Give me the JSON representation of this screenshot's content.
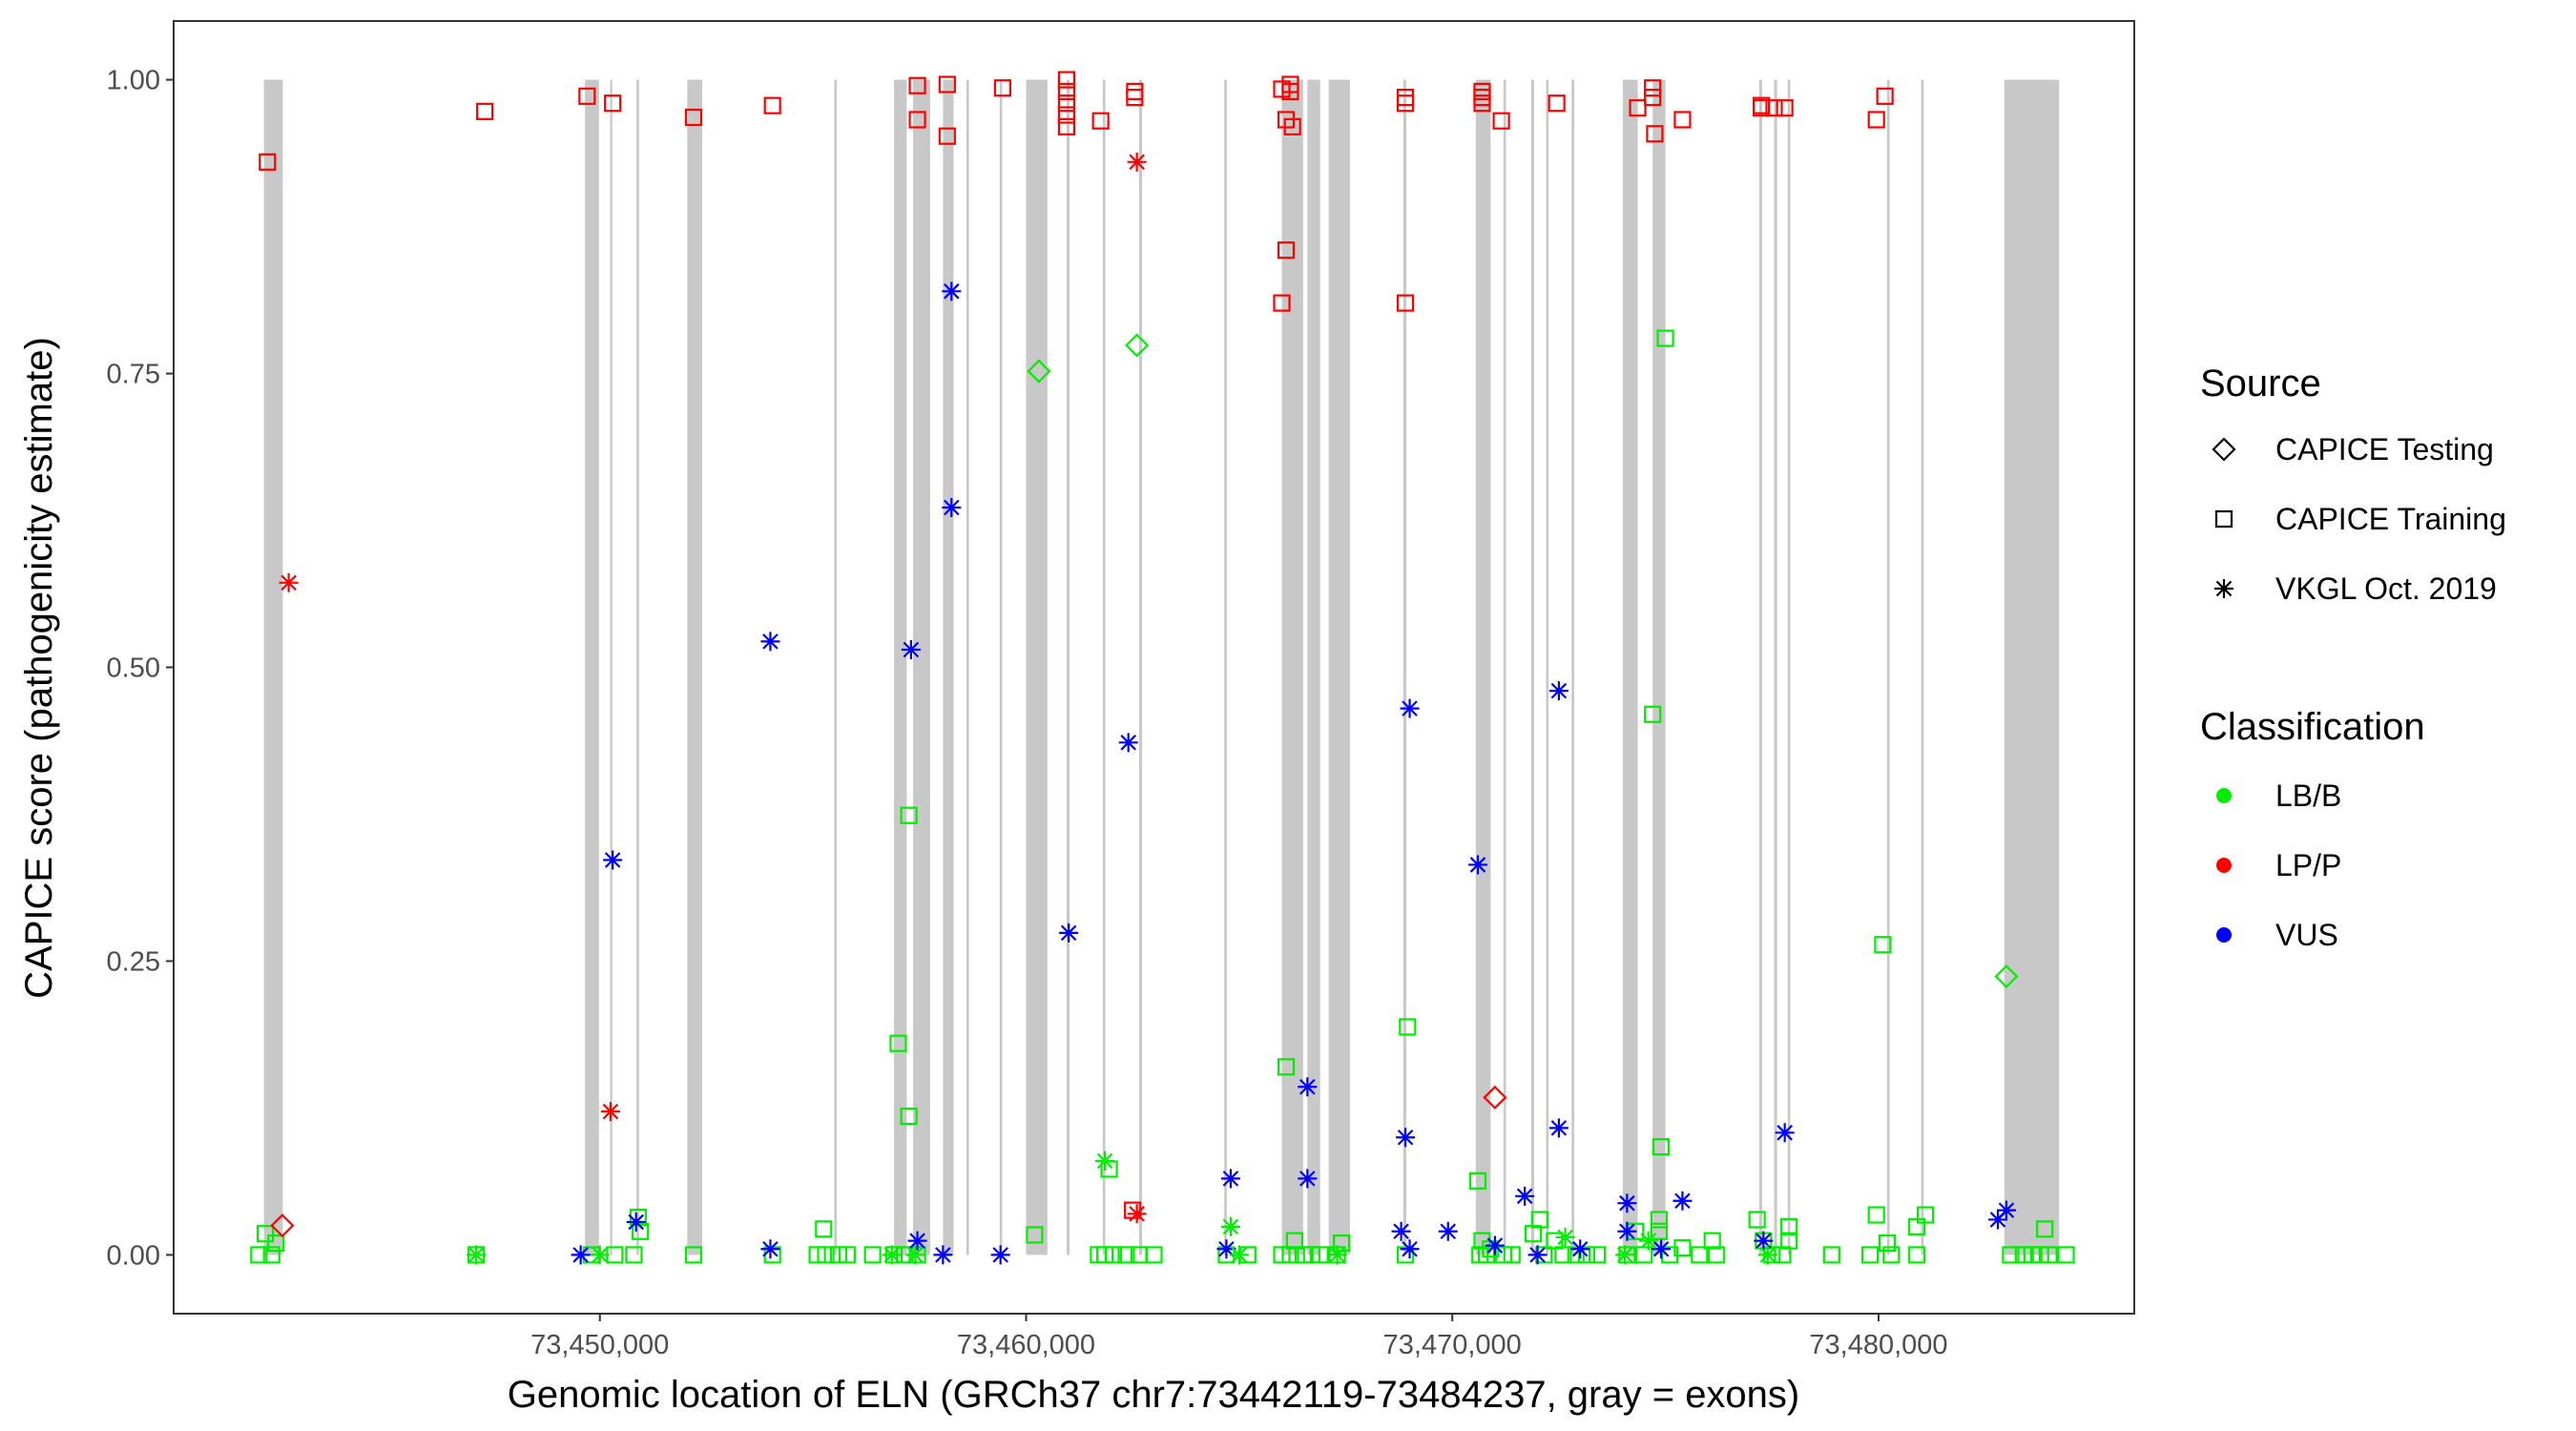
{
  "chart_data": {
    "type": "scatter",
    "xlabel": "Genomic location of ELN (GRCh37 chr7:73442119-73484237, gray = exons)",
    "ylabel": "CAPICE score (pathogenicity estimate)",
    "xlim": [
      73440000,
      73486000
    ],
    "ylim": [
      -0.05,
      1.05
    ],
    "xticks": [
      73450000,
      73460000,
      73470000,
      73480000
    ],
    "xtick_labels": [
      "73,450,000",
      "73,460,000",
      "73,470,000",
      "73,480,000"
    ],
    "yticks": [
      0,
      0.25,
      0.5,
      0.75,
      1.0
    ],
    "ytick_labels": [
      "0.00",
      "0.25",
      "0.50",
      "0.75",
      "1.00"
    ],
    "grid": false,
    "exons": [
      [
        73442119,
        73442560
      ],
      [
        73449650,
        73449980
      ],
      [
        73450240,
        73450290
      ],
      [
        73450860,
        73450920
      ],
      [
        73452050,
        73452400
      ],
      [
        73455500,
        73455560
      ],
      [
        73456900,
        73457200
      ],
      [
        73457350,
        73457750
      ],
      [
        73458050,
        73458300
      ],
      [
        73458600,
        73458660
      ],
      [
        73459380,
        73459440
      ],
      [
        73460000,
        73460500
      ],
      [
        73460950,
        73461020
      ],
      [
        73461800,
        73461860
      ],
      [
        73462650,
        73462720
      ],
      [
        73464650,
        73464710
      ],
      [
        73466000,
        73466500
      ],
      [
        73466600,
        73466900
      ],
      [
        73467100,
        73467600
      ],
      [
        73468850,
        73468920
      ],
      [
        73470550,
        73470900
      ],
      [
        73471200,
        73471260
      ],
      [
        73471850,
        73471920
      ],
      [
        73472200,
        73472260
      ],
      [
        73472800,
        73472860
      ],
      [
        73474000,
        73474350
      ],
      [
        73474700,
        73475000
      ],
      [
        73477200,
        73477270
      ],
      [
        73477550,
        73477620
      ],
      [
        73477870,
        73477930
      ],
      [
        73480200,
        73480260
      ],
      [
        73481000,
        73481060
      ],
      [
        73482950,
        73484237
      ]
    ],
    "series": [
      {
        "source": "CAPICE Training",
        "classification": "LP/P",
        "points": [
          [
            73442200,
            0.93
          ],
          [
            73447300,
            0.973
          ],
          [
            73449700,
            0.986
          ],
          [
            73450300,
            0.98
          ],
          [
            73452200,
            0.968
          ],
          [
            73454050,
            0.978
          ],
          [
            73457450,
            0.995
          ],
          [
            73457450,
            0.966
          ],
          [
            73458150,
            0.996
          ],
          [
            73458150,
            0.952
          ],
          [
            73459450,
            0.993
          ],
          [
            73460950,
            1.0
          ],
          [
            73460950,
            0.99
          ],
          [
            73460950,
            0.98
          ],
          [
            73460950,
            0.97
          ],
          [
            73460950,
            0.96
          ],
          [
            73461750,
            0.965
          ],
          [
            73462550,
            0.99
          ],
          [
            73462550,
            0.985
          ],
          [
            73466000,
            0.992
          ],
          [
            73466200,
            0.996
          ],
          [
            73466200,
            0.99
          ],
          [
            73466100,
            0.966
          ],
          [
            73466250,
            0.96
          ],
          [
            73466100,
            0.855
          ],
          [
            73466000,
            0.81
          ],
          [
            73468900,
            0.985
          ],
          [
            73468900,
            0.98
          ],
          [
            73468900,
            0.81
          ],
          [
            73470700,
            0.99
          ],
          [
            73470700,
            0.98
          ],
          [
            73470700,
            0.985
          ],
          [
            73471150,
            0.965
          ],
          [
            73472450,
            0.98
          ],
          [
            73474350,
            0.976
          ],
          [
            73474700,
            0.993
          ],
          [
            73474700,
            0.985
          ],
          [
            73474750,
            0.954
          ],
          [
            73475400,
            0.966
          ],
          [
            73477250,
            0.976
          ],
          [
            73477250,
            0.978
          ],
          [
            73477550,
            0.976
          ],
          [
            73477800,
            0.976
          ],
          [
            73479950,
            0.966
          ],
          [
            73480150,
            0.986
          ],
          [
            73462500,
            0.038
          ]
        ]
      },
      {
        "source": "CAPICE Training",
        "classification": "LB/B",
        "points": [
          [
            73442000,
            0.0
          ],
          [
            73442300,
            0.0
          ],
          [
            73442400,
            0.01
          ],
          [
            73442150,
            0.018
          ],
          [
            73447100,
            0.0
          ],
          [
            73449800,
            0.0
          ],
          [
            73450350,
            0.0
          ],
          [
            73450800,
            0.0
          ],
          [
            73450900,
            0.032
          ],
          [
            73450950,
            0.02
          ],
          [
            73452200,
            0.0
          ],
          [
            73454050,
            0.0
          ],
          [
            73455100,
            0.0
          ],
          [
            73455300,
            0.0
          ],
          [
            73455250,
            0.022
          ],
          [
            73455600,
            0.0
          ],
          [
            73455800,
            0.0
          ],
          [
            73456400,
            0.0
          ],
          [
            73456900,
            0.0
          ],
          [
            73457150,
            0.0
          ],
          [
            73457450,
            0.0
          ],
          [
            73457000,
            0.18
          ],
          [
            73457250,
            0.118
          ],
          [
            73457250,
            0.374
          ],
          [
            73460200,
            0.017
          ],
          [
            73461700,
            0.0
          ],
          [
            73461850,
            0.0
          ],
          [
            73462050,
            0.0
          ],
          [
            73461950,
            0.073
          ],
          [
            73462350,
            0.0
          ],
          [
            73462650,
            0.0
          ],
          [
            73463000,
            0.0
          ],
          [
            73464700,
            0.0
          ],
          [
            73465200,
            0.0
          ],
          [
            73466000,
            0.0
          ],
          [
            73466100,
            0.16
          ],
          [
            73466200,
            0.0
          ],
          [
            73466300,
            0.012
          ],
          [
            73466500,
            0.0
          ],
          [
            73466700,
            0.0
          ],
          [
            73466900,
            0.0
          ],
          [
            73467300,
            0.0
          ],
          [
            73467400,
            0.01
          ],
          [
            73468900,
            0.0
          ],
          [
            73468950,
            0.194
          ],
          [
            73470600,
            0.063
          ],
          [
            73470650,
            0.0
          ],
          [
            73470700,
            0.012
          ],
          [
            73470800,
            0.0
          ],
          [
            73470900,
            0.005
          ],
          [
            73471200,
            0.0
          ],
          [
            73471400,
            0.0
          ],
          [
            73471900,
            0.018
          ],
          [
            73472050,
            0.03
          ],
          [
            73472150,
            0.0
          ],
          [
            73472400,
            0.012
          ],
          [
            73472600,
            0.0
          ],
          [
            73472900,
            0.0
          ],
          [
            73473150,
            0.0
          ],
          [
            73473400,
            0.0
          ],
          [
            73474100,
            0.0
          ],
          [
            73474300,
            0.02
          ],
          [
            73474500,
            0.0
          ],
          [
            73474700,
            0.46
          ],
          [
            73474850,
            0.03
          ],
          [
            73474850,
            0.02
          ],
          [
            73474900,
            0.092
          ],
          [
            73475000,
            0.78
          ],
          [
            73475100,
            0.0
          ],
          [
            73475400,
            0.006
          ],
          [
            73475800,
            0.0
          ],
          [
            73476200,
            0.0
          ],
          [
            73476100,
            0.012
          ],
          [
            73477150,
            0.03
          ],
          [
            73477300,
            0.012
          ],
          [
            73477500,
            0.0
          ],
          [
            73477750,
            0.0
          ],
          [
            73477900,
            0.024
          ],
          [
            73477900,
            0.012
          ],
          [
            73478900,
            0.0
          ],
          [
            73479800,
            0.0
          ],
          [
            73480100,
            0.264
          ],
          [
            73479950,
            0.034
          ],
          [
            73480200,
            0.01
          ],
          [
            73480300,
            0.0
          ],
          [
            73480900,
            0.0
          ],
          [
            73481100,
            0.034
          ],
          [
            73480900,
            0.024
          ],
          [
            73483100,
            0.0
          ],
          [
            73483400,
            0.0
          ],
          [
            73483600,
            0.0
          ],
          [
            73483800,
            0.0
          ],
          [
            73484000,
            0.0
          ],
          [
            73483900,
            0.022
          ],
          [
            73484400,
            0.0
          ]
        ]
      },
      {
        "source": "CAPICE Testing",
        "classification": "LB/B",
        "points": [
          [
            73460300,
            0.752
          ],
          [
            73462600,
            0.774
          ],
          [
            73483000,
            0.237
          ]
        ]
      },
      {
        "source": "CAPICE Testing",
        "classification": "LP/P",
        "points": [
          [
            73442550,
            0.025
          ],
          [
            73471000,
            0.134
          ]
        ]
      },
      {
        "source": "VKGL Oct. 2019",
        "classification": "LP/P",
        "points": [
          [
            73442700,
            0.572
          ],
          [
            73450250,
            0.122
          ],
          [
            73462600,
            0.93
          ],
          [
            73462600,
            0.035
          ]
        ]
      },
      {
        "source": "VKGL Oct. 2019",
        "classification": "VUS",
        "points": [
          [
            73450300,
            0.336
          ],
          [
            73454000,
            0.522
          ],
          [
            73457300,
            0.515
          ],
          [
            73458250,
            0.82
          ],
          [
            73458250,
            0.636
          ],
          [
            73461000,
            0.274
          ],
          [
            73462400,
            0.436
          ],
          [
            73464800,
            0.065
          ],
          [
            73466600,
            0.143
          ],
          [
            73466600,
            0.065
          ],
          [
            73469000,
            0.465
          ],
          [
            73468900,
            0.1
          ],
          [
            73470600,
            0.332
          ],
          [
            73472500,
            0.48
          ],
          [
            73472500,
            0.108
          ],
          [
            73471700,
            0.05
          ],
          [
            73477800,
            0.104
          ],
          [
            73475400,
            0.046
          ],
          [
            73474100,
            0.044
          ],
          [
            73482800,
            0.03
          ],
          [
            73483000,
            0.038
          ],
          [
            73449550,
            0.0
          ],
          [
            73450850,
            0.028
          ],
          [
            73454000,
            0.005
          ],
          [
            73457450,
            0.012
          ],
          [
            73458050,
            0.0
          ],
          [
            73459400,
            0.0
          ],
          [
            73464700,
            0.005
          ],
          [
            73468800,
            0.02
          ],
          [
            73469000,
            0.005
          ],
          [
            73469900,
            0.02
          ],
          [
            73471000,
            0.008
          ],
          [
            73472000,
            0.0
          ],
          [
            73473000,
            0.005
          ],
          [
            73474100,
            0.02
          ],
          [
            73474900,
            0.005
          ],
          [
            73477300,
            0.012
          ]
        ]
      },
      {
        "source": "VKGL Oct. 2019",
        "classification": "LB/B",
        "points": [
          [
            73447100,
            0.0
          ],
          [
            73450000,
            0.0
          ],
          [
            73456850,
            0.0
          ],
          [
            73457400,
            0.0
          ],
          [
            73461850,
            0.08
          ],
          [
            73464800,
            0.024
          ],
          [
            73465000,
            0.0
          ],
          [
            73467300,
            0.0
          ],
          [
            73472650,
            0.015
          ],
          [
            73474050,
            0.0
          ],
          [
            73474600,
            0.012
          ],
          [
            73477400,
            0.0
          ]
        ]
      }
    ],
    "legend": {
      "placement": "right",
      "source_title": "Source",
      "source_items": [
        {
          "label": "CAPICE Testing",
          "shape": "diamond"
        },
        {
          "label": "CAPICE Training",
          "shape": "square"
        },
        {
          "label": "VKGL Oct. 2019",
          "shape": "asterisk"
        }
      ],
      "class_title": "Classification",
      "class_items": [
        {
          "label": "LB/B",
          "color": "#00ee00"
        },
        {
          "label": "LP/P",
          "color": "#ff0000"
        },
        {
          "label": "VUS",
          "color": "#0000ff"
        }
      ]
    },
    "colors": {
      "LB/B": "#00ee00",
      "LP/P": "#ff0000",
      "VUS": "#0000ff",
      "exon": "#c8c8c8"
    }
  }
}
